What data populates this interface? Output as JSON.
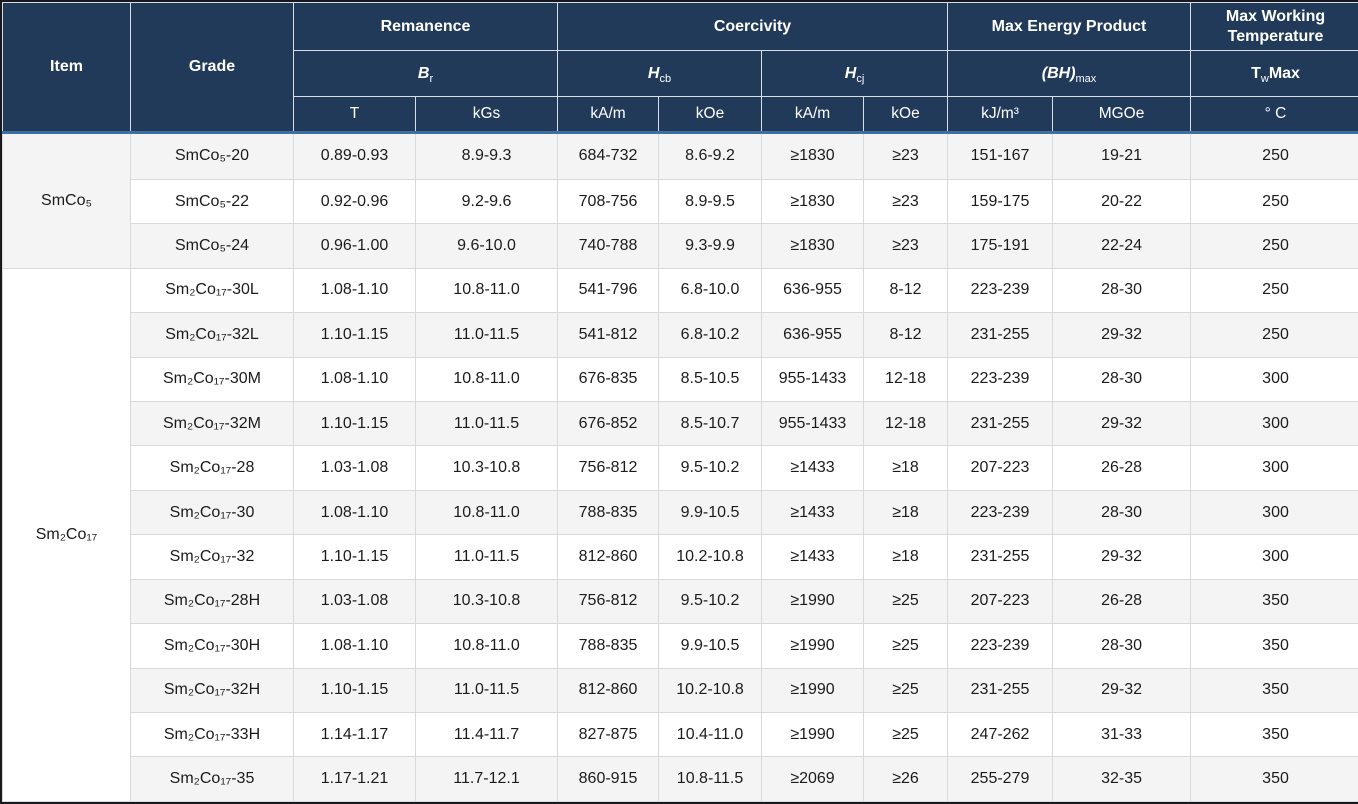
{
  "colors": {
    "header_bg": "#213a59",
    "accent_line": "#3d6fa5",
    "row_alt": "#f4f4f5",
    "grid_line": "#d9d9d9"
  },
  "table": {
    "header": {
      "item": "Item",
      "grade": "Grade",
      "groups": [
        {
          "label": "Remanence"
        },
        {
          "label": "Coercivity"
        },
        {
          "label": "Max Energy Product"
        },
        {
          "label": "Max Working Temperature"
        }
      ],
      "symbols": {
        "br": {
          "base": "B",
          "sub": "r"
        },
        "hcb": {
          "base": "H",
          "sub": "cb"
        },
        "hcj": {
          "base": "H",
          "sub": "cj"
        },
        "bhmax": {
          "base": "(BH)",
          "sub": "max"
        },
        "twmax": {
          "base": "T",
          "sub": "w",
          "post": "Max"
        }
      },
      "units": [
        "T",
        "kGs",
        "kA/m",
        "kOe",
        "kA/m",
        "kOe",
        "kJ/m³",
        "MGOe",
        "° C"
      ]
    },
    "groups": [
      {
        "item": "SmCo₅",
        "rows": [
          {
            "grade": "SmCo₅-20",
            "values": [
              "0.89-0.93",
              "8.9-9.3",
              "684-732",
              "8.6-9.2",
              "≥1830",
              "≥23",
              "151-167",
              "19-21",
              "250"
            ]
          },
          {
            "grade": "SmCo₅-22",
            "values": [
              "0.92-0.96",
              "9.2-9.6",
              "708-756",
              "8.9-9.5",
              "≥1830",
              "≥23",
              "159-175",
              "20-22",
              "250"
            ]
          },
          {
            "grade": "SmCo₅-24",
            "values": [
              "0.96-1.00",
              "9.6-10.0",
              "740-788",
              "9.3-9.9",
              "≥1830",
              "≥23",
              "175-191",
              "22-24",
              "250"
            ]
          }
        ]
      },
      {
        "item": "Sm₂Co₁₇",
        "rows": [
          {
            "grade": "Sm₂Co₁₇-30L",
            "values": [
              "1.08-1.10",
              "10.8-11.0",
              "541-796",
              "6.8-10.0",
              "636-955",
              "8-12",
              "223-239",
              "28-30",
              "250"
            ]
          },
          {
            "grade": "Sm₂Co₁₇-32L",
            "values": [
              "1.10-1.15",
              "11.0-11.5",
              "541-812",
              "6.8-10.2",
              "636-955",
              "8-12",
              "231-255",
              "29-32",
              "250"
            ]
          },
          {
            "grade": "Sm₂Co₁₇-30M",
            "values": [
              "1.08-1.10",
              "10.8-11.0",
              "676-835",
              "8.5-10.5",
              "955-1433",
              "12-18",
              "223-239",
              "28-30",
              "300"
            ]
          },
          {
            "grade": "Sm₂Co₁₇-32M",
            "values": [
              "1.10-1.15",
              "11.0-11.5",
              "676-852",
              "8.5-10.7",
              "955-1433",
              "12-18",
              "231-255",
              "29-32",
              "300"
            ]
          },
          {
            "grade": "Sm₂Co₁₇-28",
            "values": [
              "1.03-1.08",
              "10.3-10.8",
              "756-812",
              "9.5-10.2",
              "≥1433",
              "≥18",
              "207-223",
              "26-28",
              "300"
            ]
          },
          {
            "grade": "Sm₂Co₁₇-30",
            "values": [
              "1.08-1.10",
              "10.8-11.0",
              "788-835",
              "9.9-10.5",
              "≥1433",
              "≥18",
              "223-239",
              "28-30",
              "300"
            ]
          },
          {
            "grade": "Sm₂Co₁₇-32",
            "values": [
              "1.10-1.15",
              "11.0-11.5",
              "812-860",
              "10.2-10.8",
              "≥1433",
              "≥18",
              "231-255",
              "29-32",
              "300"
            ]
          },
          {
            "grade": "Sm₂Co₁₇-28H",
            "values": [
              "1.03-1.08",
              "10.3-10.8",
              "756-812",
              "9.5-10.2",
              "≥1990",
              "≥25",
              "207-223",
              "26-28",
              "350"
            ]
          },
          {
            "grade": "Sm₂Co₁₇-30H",
            "values": [
              "1.08-1.10",
              "10.8-11.0",
              "788-835",
              "9.9-10.5",
              "≥1990",
              "≥25",
              "223-239",
              "28-30",
              "350"
            ]
          },
          {
            "grade": "Sm₂Co₁₇-32H",
            "values": [
              "1.10-1.15",
              "11.0-11.5",
              "812-860",
              "10.2-10.8",
              "≥1990",
              "≥25",
              "231-255",
              "29-32",
              "350"
            ]
          },
          {
            "grade": "Sm₂Co₁₇-33H",
            "values": [
              "1.14-1.17",
              "11.4-11.7",
              "827-875",
              "10.4-11.0",
              "≥1990",
              "≥25",
              "247-262",
              "31-33",
              "350"
            ]
          },
          {
            "grade": "Sm₂Co₁₇-35",
            "values": [
              "1.17-1.21",
              "11.7-12.1",
              "860-915",
              "10.8-11.5",
              "≥2069",
              "≥26",
              "255-279",
              "32-35",
              "350"
            ]
          }
        ]
      }
    ]
  }
}
